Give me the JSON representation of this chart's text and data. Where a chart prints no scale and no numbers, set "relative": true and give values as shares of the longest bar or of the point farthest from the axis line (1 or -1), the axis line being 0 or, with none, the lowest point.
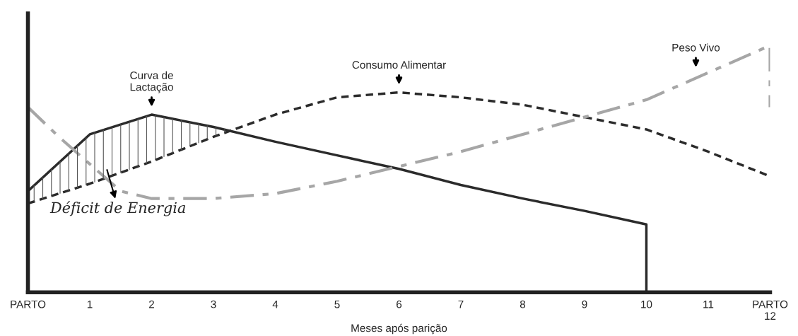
{
  "chart_data": {
    "type": "line",
    "relative": true,
    "xlabel": "Meses após parição",
    "xlim": [
      0,
      12
    ],
    "xticks": [
      {
        "value": 0,
        "label": "PARTO"
      },
      1,
      2,
      3,
      4,
      5,
      6,
      7,
      8,
      9,
      10,
      11,
      {
        "value": 12,
        "label": "PARTO\n12"
      }
    ],
    "series": [
      {
        "color": "#2b2b2b",
        "line_style": "solid",
        "x": [
          0,
          1,
          2,
          3,
          4,
          5,
          6,
          7,
          8,
          9,
          10,
          10
        ],
        "values": [
          0.41,
          0.64,
          0.72,
          0.67,
          0.61,
          0.555,
          0.5,
          0.435,
          0.38,
          0.33,
          0.275,
          0
        ]
      },
      {
        "color": "#2b2b2b",
        "line_style": "dashed",
        "x": [
          0,
          1,
          2,
          3,
          4,
          5,
          6,
          7,
          8,
          9,
          10,
          11,
          12
        ],
        "values": [
          0.36,
          0.44,
          0.53,
          0.63,
          0.72,
          0.79,
          0.81,
          0.79,
          0.76,
          0.71,
          0.66,
          0.57,
          0.47
        ]
      },
      {
        "color": "#a6a6a6",
        "line_style": "dashdot",
        "x": [
          0,
          0.5,
          1,
          1.5,
          2,
          3,
          4,
          5,
          6,
          7,
          8,
          9,
          10,
          11,
          12,
          12
        ],
        "values": [
          0.75,
          0.63,
          0.52,
          0.41,
          0.38,
          0.38,
          0.4,
          0.45,
          0.51,
          0.57,
          0.64,
          0.71,
          0.78,
          0.89,
          1.0,
          0.75
        ]
      }
    ],
    "annotations": [
      {
        "text": "Curva de\nLactação",
        "x": 2,
        "y": 0.72
      },
      {
        "text": "Consumo Alimentar",
        "x": 6,
        "y": 0.81
      },
      {
        "text": "Peso Vivo",
        "x": 10.8,
        "y": 0.88
      },
      "Déficit de Energia"
    ],
    "grid": false,
    "legend": false,
    "marker": "none"
  }
}
